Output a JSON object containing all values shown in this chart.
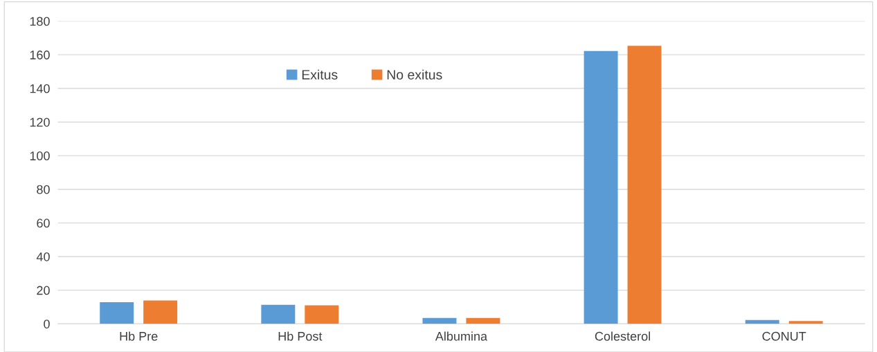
{
  "chart_data": {
    "type": "bar",
    "categories": [
      "Hb Pre",
      "Hb Post",
      "Albumina",
      "Colesterol",
      "CONUT"
    ],
    "series": [
      {
        "name": "Exitus",
        "color": "#5b9bd5",
        "values": [
          12.9,
          11.3,
          3.5,
          162.2,
          2.3
        ]
      },
      {
        "name": "No exitus",
        "color": "#ed7d31",
        "values": [
          13.9,
          11.0,
          3.5,
          165.3,
          1.7
        ]
      }
    ],
    "ylim": [
      0,
      180
    ],
    "yticks": [
      0,
      20,
      40,
      60,
      80,
      100,
      120,
      140,
      160,
      180
    ],
    "grid": "y",
    "legend": "top"
  }
}
